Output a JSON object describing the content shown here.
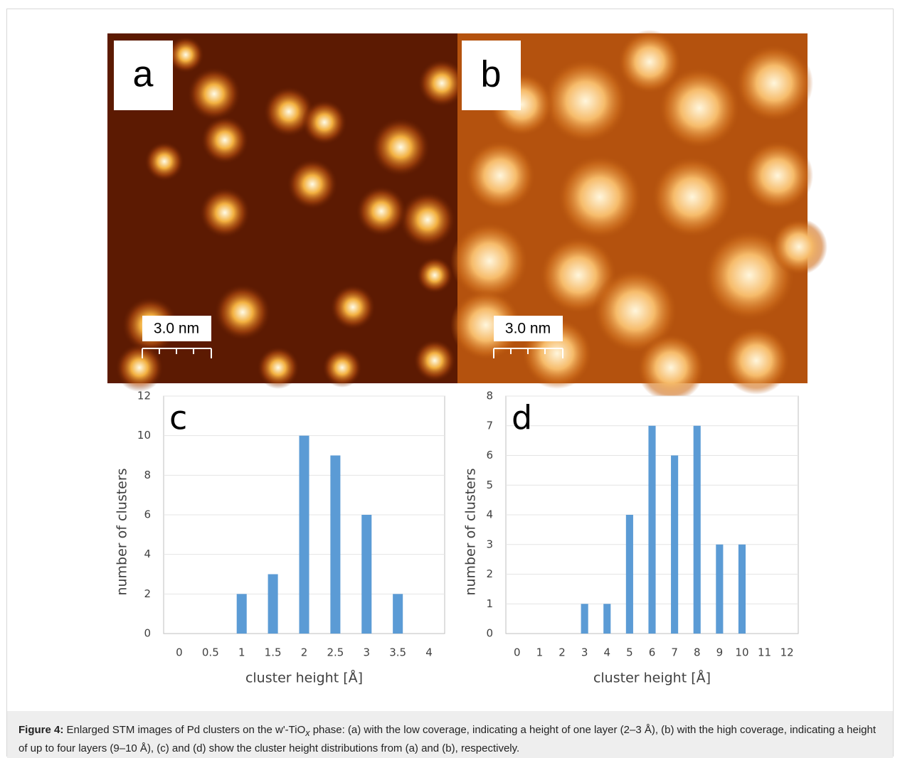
{
  "images": [
    {
      "label": "a",
      "scale_bar": "3.0 nm"
    },
    {
      "label": "b",
      "scale_bar": "3.0 nm"
    }
  ],
  "chart_data": [
    {
      "type": "bar",
      "panel_label": "c",
      "x_label": "cluster height [Å]",
      "y_label": "number of clusters",
      "categories": [
        "0",
        "0.5",
        "1",
        "1.5",
        "2",
        "2.5",
        "3",
        "3.5",
        "4"
      ],
      "values": [
        0,
        0,
        2,
        3,
        10,
        9,
        6,
        2,
        0
      ],
      "color": "#5b9bd5",
      "ylim": [
        0,
        12
      ],
      "yticks": [
        0,
        2,
        4,
        6,
        8,
        10,
        12
      ],
      "grid": true
    },
    {
      "type": "bar",
      "panel_label": "d",
      "x_label": "cluster height [Å]",
      "y_label": "number of clusters",
      "categories": [
        "0",
        "1",
        "2",
        "3",
        "4",
        "5",
        "6",
        "7",
        "8",
        "9",
        "10",
        "11",
        "12"
      ],
      "values": [
        0,
        0,
        0,
        1,
        1,
        4,
        7,
        6,
        7,
        3,
        3,
        0,
        0
      ],
      "color": "#5b9bd5",
      "ylim": [
        0,
        8
      ],
      "yticks": [
        0,
        1,
        2,
        3,
        4,
        5,
        6,
        7,
        8
      ],
      "grid": true
    }
  ],
  "caption": {
    "label": "Figure 4:",
    "text_before": " Enlarged STM images of Pd clusters on the w'-TiO",
    "subscript": "x",
    "text_after": " phase: (a) with the low coverage, indicating a height of one layer (2–3 Å), (b) with the high coverage, indicating a height of up to four layers (9–10 Å), (c) and (d) show the cluster height distributions from (a) and (b), respectively."
  }
}
